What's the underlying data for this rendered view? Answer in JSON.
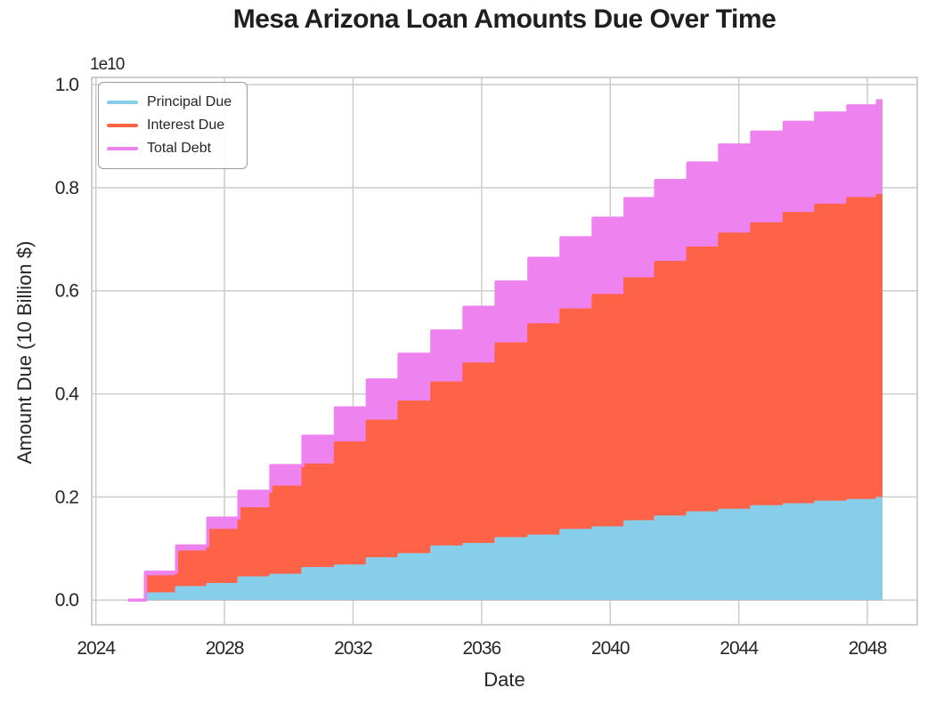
{
  "title": {
    "text": "Mesa Arizona Loan Amounts Due Over Time"
  },
  "chart_data": {
    "type": "area",
    "variant": "stacked_step_post",
    "title": "Mesa Arizona Loan Amounts Due Over Time",
    "xlabel": "Date",
    "ylabel": "Amount Due (10 Billion $)",
    "offset_text": "1e10",
    "units_note": "values in units of 1e10 dollars",
    "grid": true,
    "legend_position": "upper left",
    "xlim": [
      2023.87,
      2049.55
    ],
    "ylim": [
      -0.048,
      1.014
    ],
    "x_ticks": [
      "2024",
      "2028",
      "2032",
      "2036",
      "2040",
      "2044",
      "2048"
    ],
    "x_tick_values": [
      2024,
      2028,
      2032,
      2036,
      2040,
      2044,
      2048
    ],
    "y_ticks": [
      "0.0",
      "0.2",
      "0.4",
      "0.6",
      "0.8",
      "1.0"
    ],
    "y_tick_values": [
      0.0,
      0.2,
      0.4,
      0.6,
      0.8,
      1.0
    ],
    "x": [
      2025.0,
      2025.54,
      2026.51,
      2027.48,
      2028.45,
      2029.44,
      2030.44,
      2031.45,
      2032.44,
      2033.43,
      2034.45,
      2035.45,
      2036.45,
      2037.47,
      2038.47,
      2039.47,
      2040.46,
      2041.41,
      2042.41,
      2043.4,
      2044.4,
      2045.41,
      2046.39,
      2047.39,
      2048.31
    ],
    "x_end": 2048.47,
    "series": [
      {
        "name": "Principal Due",
        "color": "#87CEEB",
        "values": [
          0,
          0.012,
          0.024,
          0.03,
          0.043,
          0.048,
          0.061,
          0.066,
          0.08,
          0.088,
          0.103,
          0.108,
          0.119,
          0.124,
          0.135,
          0.14,
          0.152,
          0.161,
          0.169,
          0.174,
          0.181,
          0.185,
          0.19,
          0.193,
          0.197
        ]
      },
      {
        "name": "Interest Due",
        "color": "#FF6347",
        "values": [
          0,
          0.033,
          0.069,
          0.105,
          0.134,
          0.171,
          0.201,
          0.239,
          0.267,
          0.296,
          0.318,
          0.35,
          0.378,
          0.41,
          0.428,
          0.451,
          0.471,
          0.494,
          0.514,
          0.536,
          0.549,
          0.565,
          0.576,
          0.586,
          0.588
        ]
      },
      {
        "name": "Total Debt",
        "color": "#EE82EE",
        "values": [
          0,
          0.009,
          0.012,
          0.024,
          0.034,
          0.042,
          0.056,
          0.068,
          0.08,
          0.093,
          0.101,
          0.11,
          0.12,
          0.129,
          0.14,
          0.15,
          0.156,
          0.159,
          0.165,
          0.173,
          0.178,
          0.177,
          0.179,
          0.18,
          0.184
        ]
      }
    ],
    "colors": {
      "grid": "#cccccc",
      "spine": "#c8c8c8",
      "text": "#262626",
      "background": "#ffffff"
    }
  }
}
